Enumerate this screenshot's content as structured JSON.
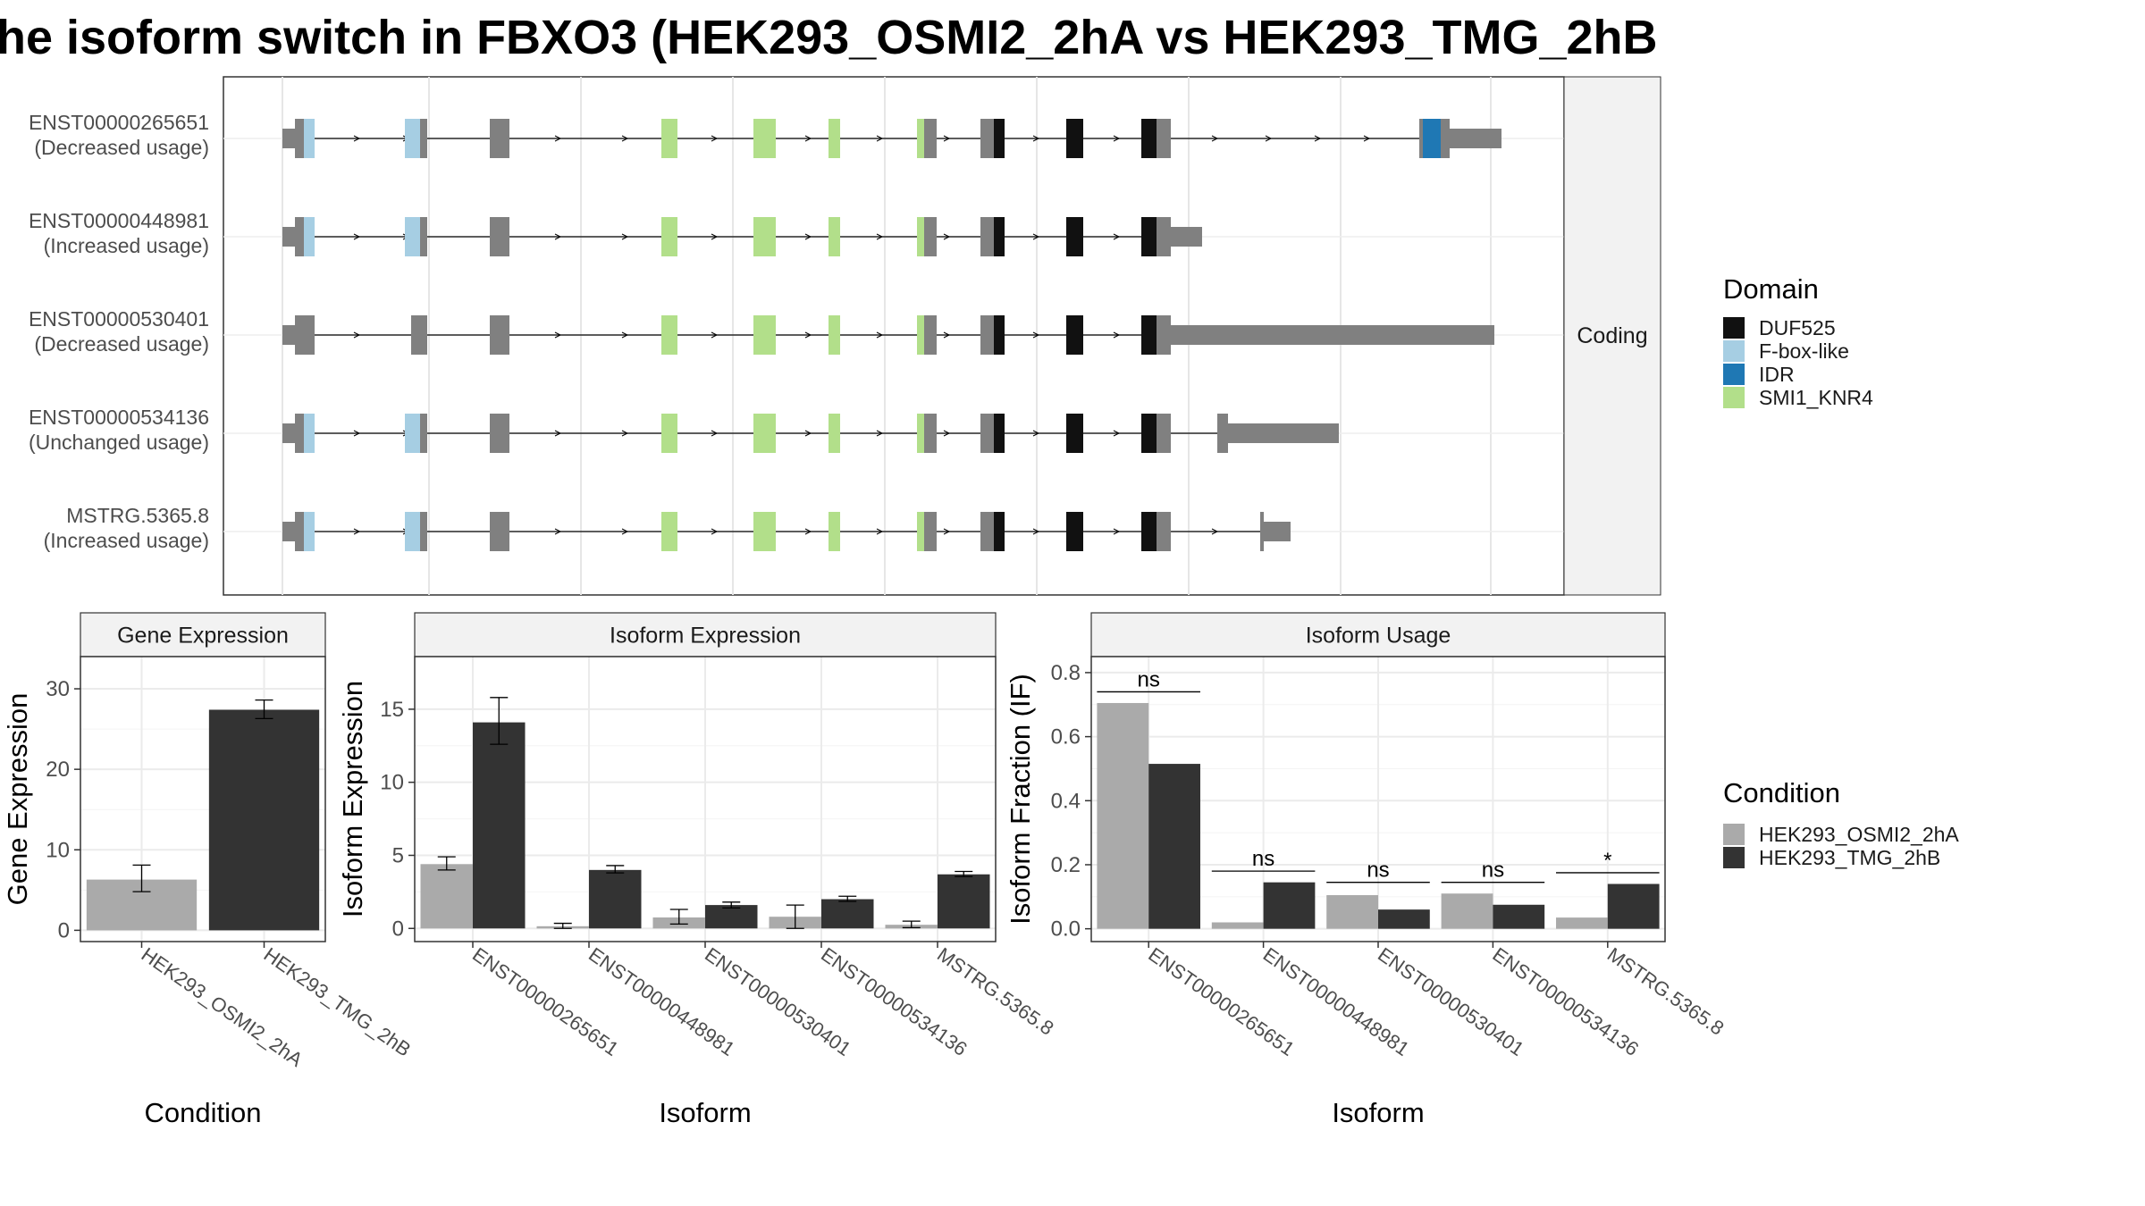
{
  "title": "he isoform switch in FBXO3 (HEK293_OSMI2_2hA vs HEK293_TMG_2hB",
  "colors": {
    "osmi": "#aaaaaa",
    "tmg": "#333333",
    "exon": "#808080",
    "duf525": "#111111",
    "fbox": "#a6cee3",
    "idr": "#1f78b4",
    "smi1": "#b2df8a"
  },
  "transcripts": {
    "facet_label": "Coding",
    "rows": [
      {
        "id": "ENST00000265651",
        "status": "(Decreased usage)"
      },
      {
        "id": "ENST00000448981",
        "status": "(Increased usage)"
      },
      {
        "id": "ENST00000530401",
        "status": "(Decreased usage)"
      },
      {
        "id": "ENST00000534136",
        "status": "(Unchanged usage)"
      },
      {
        "id": "MSTRG.5365.8",
        "status": "(Increased usage)"
      }
    ]
  },
  "domain_legend": {
    "title": "Domain",
    "items": [
      {
        "label": "DUF525",
        "key": "duf525"
      },
      {
        "label": "F-box-like",
        "key": "fbox"
      },
      {
        "label": "IDR",
        "key": "idr"
      },
      {
        "label": "SMI1_KNR4",
        "key": "smi1"
      }
    ]
  },
  "condition_legend": {
    "title": "Condition",
    "items": [
      {
        "label": "HEK293_OSMI2_2hA",
        "key": "osmi"
      },
      {
        "label": "HEK293_TMG_2hB",
        "key": "tmg"
      }
    ]
  },
  "chart_data": [
    {
      "type": "bar",
      "title": "Gene Expression",
      "xlabel": "Condition",
      "ylabel": "Gene Expression",
      "categories": [
        "HEK293_OSMI2_2hA",
        "HEK293_TMG_2hB"
      ],
      "values": [
        6.3,
        27.4
      ],
      "error": [
        [
          4.8,
          8.1
        ],
        [
          26.3,
          28.6
        ]
      ],
      "ylim": [
        -1.4,
        34
      ],
      "yticks": [
        0,
        10,
        20,
        30
      ]
    },
    {
      "type": "bar",
      "title": "Isoform Expression",
      "xlabel": "Isoform",
      "ylabel": "Isoform Expression",
      "categories": [
        "ENST00000265651",
        "ENST00000448981",
        "ENST00000530401",
        "ENST00000534136",
        "MSTRG.5365.8"
      ],
      "series": [
        {
          "name": "HEK293_OSMI2_2hA",
          "values": [
            4.4,
            0.15,
            0.75,
            0.8,
            0.25
          ],
          "error": [
            [
              4.0,
              4.9
            ],
            [
              0.0,
              0.35
            ],
            [
              0.3,
              1.3
            ],
            [
              0.0,
              1.6
            ],
            [
              0.05,
              0.5
            ]
          ]
        },
        {
          "name": "HEK293_TMG_2hB",
          "values": [
            14.1,
            4.0,
            1.6,
            2.0,
            3.7
          ],
          "error": [
            [
              12.6,
              15.8
            ],
            [
              3.8,
              4.3
            ],
            [
              1.4,
              1.8
            ],
            [
              1.85,
              2.2
            ],
            [
              3.55,
              3.9
            ]
          ]
        }
      ],
      "ylim": [
        -0.9,
        18.6
      ],
      "yticks": [
        0,
        5,
        10,
        15
      ]
    },
    {
      "type": "bar",
      "title": "Isoform Usage",
      "xlabel": "Isoform",
      "ylabel": "Isoform Fraction (IF)",
      "categories": [
        "ENST00000265651",
        "ENST00000448981",
        "ENST00000530401",
        "ENST00000534136",
        "MSTRG.5365.8"
      ],
      "series": [
        {
          "name": "HEK293_OSMI2_2hA",
          "values": [
            0.705,
            0.02,
            0.105,
            0.11,
            0.035
          ]
        },
        {
          "name": "HEK293_TMG_2hB",
          "values": [
            0.515,
            0.145,
            0.06,
            0.075,
            0.14
          ]
        }
      ],
      "significance": [
        "ns",
        "ns",
        "ns",
        "ns",
        "*"
      ],
      "sig_level": [
        0.74,
        0.18,
        0.145,
        0.145,
        0.175
      ],
      "ylim": [
        -0.04,
        0.85
      ],
      "yticks": [
        0.0,
        0.2,
        0.4,
        0.6,
        0.8
      ],
      "ytick_labels": [
        "0.0",
        "0.2",
        "0.4",
        "0.6",
        "0.8"
      ]
    }
  ]
}
